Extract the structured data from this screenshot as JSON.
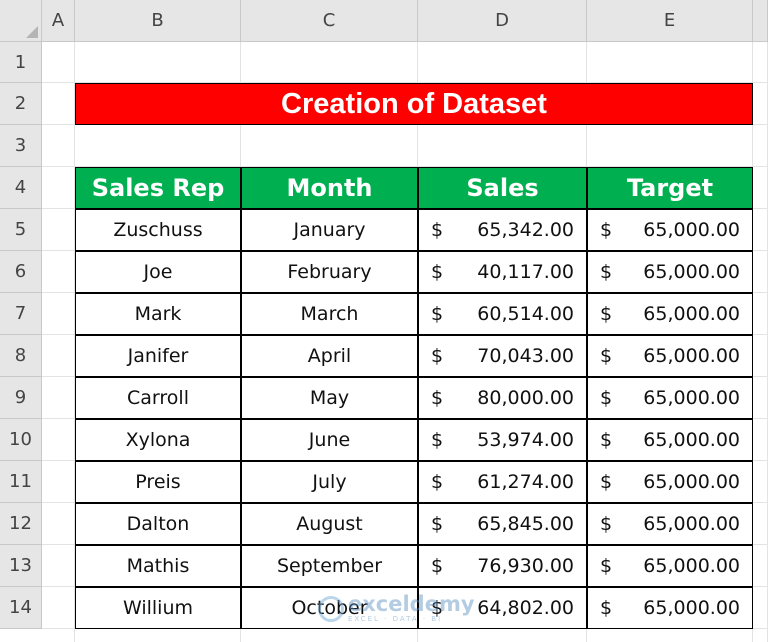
{
  "columns": [
    "A",
    "B",
    "C",
    "D",
    "E"
  ],
  "rows": [
    "1",
    "2",
    "3",
    "4",
    "5",
    "6",
    "7",
    "8",
    "9",
    "10",
    "11",
    "12",
    "13",
    "14"
  ],
  "title": "Creation of Dataset",
  "table": {
    "headers": [
      "Sales Rep",
      "Month",
      "Sales",
      "Target"
    ],
    "currency_symbol": "$",
    "rows": [
      {
        "rep": "Zuschuss",
        "month": "January",
        "sales": "65,342.00",
        "target": "65,000.00"
      },
      {
        "rep": "Joe",
        "month": "February",
        "sales": "40,117.00",
        "target": "65,000.00"
      },
      {
        "rep": "Mark",
        "month": "March",
        "sales": "60,514.00",
        "target": "65,000.00"
      },
      {
        "rep": "Janifer",
        "month": "April",
        "sales": "70,043.00",
        "target": "65,000.00"
      },
      {
        "rep": "Carroll",
        "month": "May",
        "sales": "80,000.00",
        "target": "65,000.00"
      },
      {
        "rep": "Xylona",
        "month": "June",
        "sales": "53,974.00",
        "target": "65,000.00"
      },
      {
        "rep": "Preis",
        "month": "July",
        "sales": "61,274.00",
        "target": "65,000.00"
      },
      {
        "rep": "Dalton",
        "month": "August",
        "sales": "65,845.00",
        "target": "65,000.00"
      },
      {
        "rep": "Mathis",
        "month": "September",
        "sales": "76,930.00",
        "target": "65,000.00"
      },
      {
        "rep": "Willium",
        "month": "October",
        "sales": "64,802.00",
        "target": "65,000.00"
      }
    ]
  },
  "watermark": {
    "name": "exceldemy",
    "tagline": "EXCEL · DATA · BI"
  },
  "colors": {
    "title_bg": "#ff0000",
    "header_bg": "#00b050"
  }
}
